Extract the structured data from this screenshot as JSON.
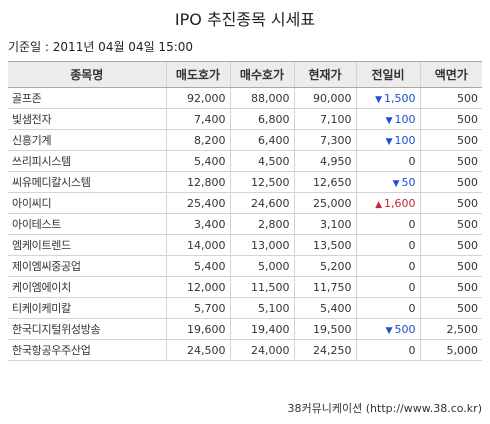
{
  "title": "IPO 추진종목 시세표",
  "base_date": "기준일 : 2011년 04월 04일 15:00",
  "headers": [
    "종목명",
    "매도호가",
    "매수호가",
    "현재가",
    "전일비",
    "액면가"
  ],
  "rows": [
    {
      "name": "골프존",
      "ask": "92,000",
      "bid": "88,000",
      "price": "90,000",
      "change": "1,500",
      "dir": "down",
      "par": "500"
    },
    {
      "name": "빛샘전자",
      "ask": "7,400",
      "bid": "6,800",
      "price": "7,100",
      "change": "100",
      "dir": "down",
      "par": "500"
    },
    {
      "name": "신흥기계",
      "ask": "8,200",
      "bid": "6,400",
      "price": "7,300",
      "change": "100",
      "dir": "down",
      "par": "500"
    },
    {
      "name": "쓰리피시스템",
      "ask": "5,400",
      "bid": "4,500",
      "price": "4,950",
      "change": "0",
      "dir": "none",
      "par": "500"
    },
    {
      "name": "씨유메디칼시스템",
      "ask": "12,800",
      "bid": "12,500",
      "price": "12,650",
      "change": "50",
      "dir": "down",
      "par": "500"
    },
    {
      "name": "아이씨디",
      "ask": "25,400",
      "bid": "24,600",
      "price": "25,000",
      "change": "1,600",
      "dir": "up",
      "par": "500"
    },
    {
      "name": "아이테스트",
      "ask": "3,400",
      "bid": "2,800",
      "price": "3,100",
      "change": "0",
      "dir": "none",
      "par": "500"
    },
    {
      "name": "엠케이트렌드",
      "ask": "14,000",
      "bid": "13,000",
      "price": "13,500",
      "change": "0",
      "dir": "none",
      "par": "500"
    },
    {
      "name": "제이엠씨중공업",
      "ask": "5,400",
      "bid": "5,000",
      "price": "5,200",
      "change": "0",
      "dir": "none",
      "par": "500"
    },
    {
      "name": "케이엠에이치",
      "ask": "12,000",
      "bid": "11,500",
      "price": "11,750",
      "change": "0",
      "dir": "none",
      "par": "500"
    },
    {
      "name": "티케이케미칼",
      "ask": "5,700",
      "bid": "5,100",
      "price": "5,400",
      "change": "0",
      "dir": "none",
      "par": "500"
    },
    {
      "name": "한국디지털위성방송",
      "ask": "19,600",
      "bid": "19,400",
      "price": "19,500",
      "change": "500",
      "dir": "down",
      "par": "2,500"
    },
    {
      "name": "한국항공우주산업",
      "ask": "24,500",
      "bid": "24,000",
      "price": "24,250",
      "change": "0",
      "dir": "none",
      "par": "5,000"
    }
  ],
  "icons": {
    "down": "down-triangle-icon",
    "up": "up-triangle-icon"
  },
  "colors": {
    "down": "#1a4fd0",
    "up": "#c0283e",
    "header_bg": "#ececec"
  },
  "source": "38커뮤니케이션 (http://www.38.co.kr)"
}
